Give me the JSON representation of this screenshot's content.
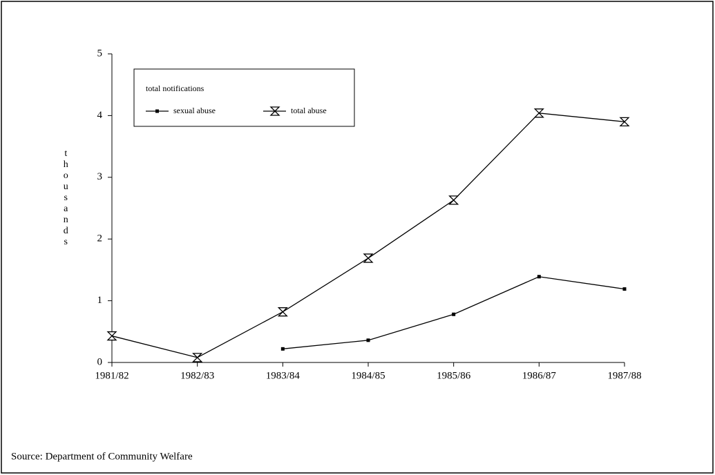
{
  "chart_data": {
    "type": "line",
    "ylabel": "thousands",
    "legend_title": "total notifications",
    "legend": "upper left",
    "categories": [
      "1981/82",
      "1982/83",
      "1983/84",
      "1984/85",
      "1985/86",
      "1986/87",
      "1987/88"
    ],
    "series": [
      {
        "name": "sexual abuse",
        "color": "#000000",
        "marker": "square",
        "values": [
          null,
          null,
          0.22,
          0.36,
          0.78,
          1.39,
          1.19
        ]
      },
      {
        "name": "total abuse",
        "color": "#000000",
        "marker": "hourglass",
        "values": [
          0.43,
          0.08,
          0.82,
          1.69,
          2.63,
          4.04,
          3.9
        ]
      }
    ],
    "ylim": [
      0,
      5
    ],
    "yticks": [
      0,
      1,
      2,
      3,
      4,
      5
    ],
    "source": "Source:  Department of Community Welfare"
  }
}
